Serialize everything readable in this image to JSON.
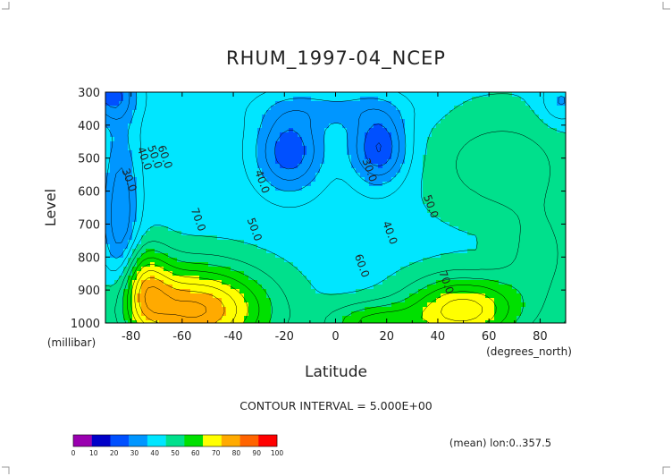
{
  "chart_data": {
    "type": "contour",
    "title": "RHUM_1997-04_NCEP",
    "xlabel": "Latitude",
    "ylabel": "Level",
    "x_unit": "(degrees_north)",
    "y_unit": "(millibar)",
    "xlim": [
      -90,
      90
    ],
    "ylim": [
      1000,
      300
    ],
    "x_ticks": [
      "-80",
      "-60",
      "-40",
      "-20",
      "0",
      "20",
      "40",
      "60",
      "80"
    ],
    "x_tick_values": [
      -80,
      -60,
      -40,
      -20,
      0,
      20,
      40,
      60,
      80
    ],
    "y_ticks": [
      "300",
      "400",
      "500",
      "600",
      "700",
      "800",
      "900",
      "1000"
    ],
    "y_tick_values": [
      300,
      400,
      500,
      600,
      700,
      800,
      900,
      1000
    ],
    "latitudes": [
      -90,
      -85,
      -80,
      -75,
      -70,
      -65,
      -60,
      -55,
      -50,
      -45,
      -40,
      -35,
      -30,
      -25,
      -20,
      -15,
      -10,
      -5,
      0,
      5,
      10,
      15,
      20,
      25,
      30,
      35,
      40,
      45,
      50,
      55,
      60,
      65,
      70,
      75,
      80,
      85,
      90
    ],
    "levels": [
      300,
      400,
      500,
      600,
      700,
      800,
      900,
      1000
    ],
    "contour_interval": "CONTOUR INTERVAL = 5.000E+00",
    "contour_labels": [
      {
        "text": "30.0",
        "lat": -82,
        "lev": 570
      },
      {
        "text": "40.0",
        "lat": -76,
        "lev": 505
      },
      {
        "text": "50.0",
        "lat": -72,
        "lev": 500
      },
      {
        "text": "60.0",
        "lat": -68,
        "lev": 500
      },
      {
        "text": "70.0",
        "lat": -55,
        "lev": 690
      },
      {
        "text": "40.0",
        "lat": -30,
        "lev": 575
      },
      {
        "text": "50.0",
        "lat": -33,
        "lev": 720
      },
      {
        "text": "30.0",
        "lat": 12,
        "lev": 540
      },
      {
        "text": "40.0",
        "lat": 20,
        "lev": 730
      },
      {
        "text": "50.0",
        "lat": 36,
        "lev": 650
      },
      {
        "text": "60.0",
        "lat": 9,
        "lev": 830
      },
      {
        "text": "70.0",
        "lat": 42,
        "lev": 880
      }
    ],
    "colorbar": {
      "ticks": [
        "0",
        "10",
        "20",
        "30",
        "40",
        "50",
        "60",
        "70",
        "80",
        "90",
        "100"
      ],
      "colors": [
        "#9a00b0",
        "#0000c8",
        "#0050ff",
        "#0096ff",
        "#00e6ff",
        "#00e08c",
        "#00e000",
        "#ffff00",
        "#ffaa00",
        "#ff6400",
        "#ff0000"
      ]
    },
    "footer": "(mean) lon:0..357.5"
  }
}
